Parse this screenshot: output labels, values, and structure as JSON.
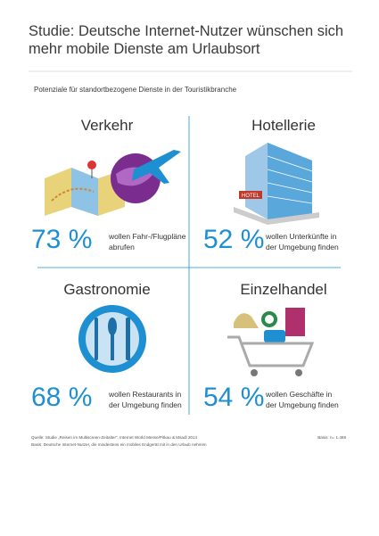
{
  "header": {
    "title_lines": [
      "Studie: Deutsche Internet-Nutzer wünschen sich",
      "mehr mobile Dienste am Urlaubsort"
    ],
    "subtitle": "Potenziale für standortbezogene Dienste in der Touristikbranche"
  },
  "panels": [
    {
      "heading": "Verkehr",
      "percent": "73 %",
      "text_lines": [
        "wollen Fahr-/Flugpläne",
        "abrufen"
      ]
    },
    {
      "heading": "Hotellerie",
      "percent": "52 %",
      "text_lines": [
        "wollen Unterkünfte in",
        "der Umgebung finden"
      ]
    },
    {
      "heading": "Gastronomie",
      "percent": "68 %",
      "text_lines": [
        "wollen Restaurants in",
        "der Umgebung finden"
      ]
    },
    {
      "heading": "Einzelhandel",
      "percent": "54 %",
      "text_lines": [
        "wollen Geschäfte in",
        "der Umgebung finden"
      ]
    }
  ],
  "hotel_sign": "HOTEL",
  "footer": {
    "source": "Quelle: Studie „Reisen im Multiscreen-Zeitalter“, Internet World Messe/Pitkau & Msadl 2014",
    "basis_note": "Basis: Deutsche Internet-Nutzer, die mindestens ein mobiles Endgerät mit in den Urlaub nehmen",
    "sample": "Basis: n= 1.468"
  }
}
